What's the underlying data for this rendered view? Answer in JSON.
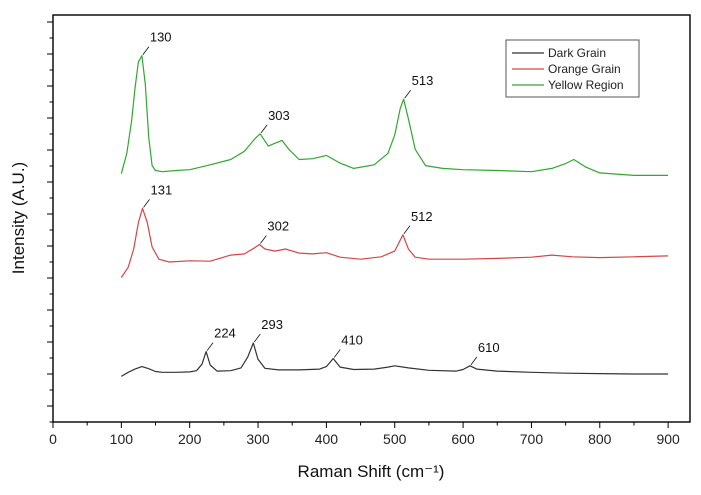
{
  "chart_data": {
    "type": "line",
    "title": "",
    "xlabel": "Raman Shift (cm⁻¹)",
    "ylabel": "Intensity (A.U.)",
    "xlim": [
      0,
      900
    ],
    "ylim": [
      0,
      100
    ],
    "x_ticks": [
      0,
      100,
      200,
      300,
      400,
      500,
      600,
      700,
      800,
      900
    ],
    "y_tick_labels": "none",
    "grid": false,
    "legend_position": "top-right",
    "series": [
      {
        "name": "Dark Grain",
        "color": "#333333",
        "x": [
          100,
          110,
          120,
          130,
          140,
          150,
          160,
          180,
          200,
          210,
          218,
          224,
          230,
          240,
          260,
          275,
          285,
          293,
          300,
          310,
          330,
          360,
          390,
          400,
          410,
          420,
          440,
          470,
          490,
          500,
          520,
          550,
          590,
          600,
          610,
          620,
          650,
          700,
          750,
          800,
          850,
          900
        ],
        "y": [
          11.2,
          12.2,
          13.0,
          13.6,
          13.1,
          12.4,
          12.2,
          12.2,
          12.3,
          12.6,
          14.2,
          17.3,
          14.0,
          12.5,
          12.6,
          13.3,
          16.0,
          19.4,
          15.4,
          13.2,
          12.8,
          12.8,
          13.0,
          13.6,
          15.6,
          13.5,
          12.9,
          13.0,
          13.5,
          13.8,
          13.3,
          12.7,
          12.5,
          12.9,
          13.8,
          13.0,
          12.5,
          12.2,
          12.0,
          11.9,
          11.8,
          11.8
        ]
      },
      {
        "name": "Orange Grain",
        "color": "#d64545",
        "x": [
          100,
          110,
          118,
          125,
          131,
          138,
          145,
          155,
          170,
          200,
          230,
          260,
          280,
          295,
          302,
          310,
          325,
          340,
          360,
          380,
          400,
          420,
          450,
          480,
          500,
          512,
          520,
          530,
          550,
          600,
          650,
          700,
          730,
          760,
          800,
          850,
          900
        ],
        "y": [
          35.5,
          38.0,
          42.5,
          49.0,
          52.5,
          49.0,
          43.0,
          40.0,
          39.3,
          39.6,
          39.5,
          41.0,
          41.3,
          42.8,
          43.6,
          42.5,
          42.0,
          42.5,
          41.5,
          41.3,
          41.6,
          40.5,
          40.0,
          40.6,
          42.0,
          46.0,
          42.5,
          40.5,
          40.0,
          40.0,
          40.2,
          40.5,
          41.0,
          40.6,
          40.4,
          40.6,
          40.8
        ]
      },
      {
        "name": "Yellow Region",
        "color": "#2fa82f",
        "x": [
          100,
          108,
          115,
          120,
          125,
          130,
          135,
          140,
          145,
          150,
          160,
          180,
          200,
          230,
          260,
          280,
          295,
          303,
          315,
          325,
          335,
          345,
          360,
          380,
          400,
          420,
          440,
          470,
          490,
          500,
          508,
          513,
          520,
          530,
          545,
          570,
          600,
          650,
          700,
          730,
          750,
          762,
          780,
          800,
          850,
          900
        ],
        "y": [
          61.0,
          66.0,
          74.0,
          82.0,
          88.5,
          90.0,
          83.0,
          70.0,
          63.0,
          61.8,
          61.5,
          61.8,
          62.0,
          63.2,
          64.5,
          66.5,
          69.5,
          70.8,
          67.8,
          68.5,
          69.2,
          67.0,
          64.5,
          64.7,
          65.5,
          63.6,
          62.3,
          63.2,
          66.0,
          70.5,
          77.0,
          79.3,
          74.5,
          67.0,
          63.0,
          62.3,
          62.0,
          61.8,
          61.5,
          62.3,
          63.5,
          64.5,
          62.6,
          61.2,
          60.6,
          60.6
        ]
      }
    ],
    "annotations": [
      {
        "text": "130",
        "x": 130,
        "y": 90.0
      },
      {
        "text": "303",
        "x": 303,
        "y": 70.8
      },
      {
        "text": "513",
        "x": 513,
        "y": 79.3
      },
      {
        "text": "131",
        "x": 131,
        "y": 52.5
      },
      {
        "text": "302",
        "x": 302,
        "y": 43.6
      },
      {
        "text": "512",
        "x": 512,
        "y": 46.0
      },
      {
        "text": "224",
        "x": 224,
        "y": 17.3
      },
      {
        "text": "293",
        "x": 293,
        "y": 19.4
      },
      {
        "text": "410",
        "x": 410,
        "y": 15.6
      },
      {
        "text": "610",
        "x": 610,
        "y": 13.8
      }
    ]
  }
}
